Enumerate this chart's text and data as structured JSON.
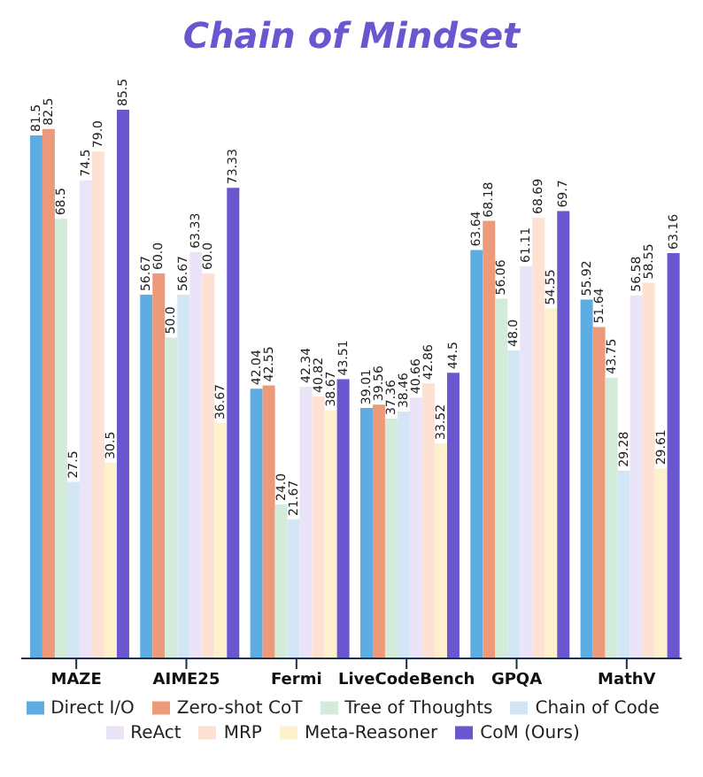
{
  "chart_data": {
    "type": "bar",
    "title": "Chain of Mindset",
    "categories": [
      "MAZE",
      "AIME25",
      "Fermi",
      "LiveCodeBench",
      "GPQA",
      "MathV"
    ],
    "series": [
      {
        "name": "Direct I/O",
        "color": "#5dade2",
        "values": [
          81.5,
          56.67,
          42.04,
          39.01,
          63.64,
          55.92
        ],
        "value_labels": [
          "81.5",
          "56.67",
          "42.04",
          "39.01",
          "63.64",
          "55.92"
        ]
      },
      {
        "name": "Zero-shot CoT",
        "color": "#ec9a7a",
        "values": [
          82.5,
          60.0,
          42.55,
          39.56,
          68.18,
          51.64
        ],
        "value_labels": [
          "82.5",
          "60.0",
          "42.55",
          "39.56",
          "68.18",
          "51.64"
        ]
      },
      {
        "name": "Tree of Thoughts",
        "color": "#d3ecd9",
        "values": [
          68.5,
          50.0,
          24.0,
          37.36,
          56.06,
          43.75
        ],
        "value_labels": [
          "68.5",
          "50.0",
          "24.0",
          "37.36",
          "56.06",
          "43.75"
        ]
      },
      {
        "name": "Chain of Code",
        "color": "#d3e6f6",
        "values": [
          27.5,
          56.67,
          21.67,
          38.46,
          48.0,
          29.28
        ],
        "value_labels": [
          "27.5",
          "56.67",
          "21.67",
          "38.46",
          "48.0",
          "29.28"
        ]
      },
      {
        "name": "ReAct",
        "color": "#ebe4f8",
        "values": [
          74.5,
          63.33,
          42.34,
          40.66,
          61.11,
          56.58
        ],
        "value_labels": [
          "74.5",
          "63.33",
          "42.34",
          "40.66",
          "61.11",
          "56.58"
        ]
      },
      {
        "name": "MRP",
        "color": "#fde2d3",
        "values": [
          79.0,
          60.0,
          40.82,
          42.86,
          68.69,
          58.55
        ],
        "value_labels": [
          "79.0",
          "60.0",
          "40.82",
          "42.86",
          "68.69",
          "58.55"
        ]
      },
      {
        "name": "Meta-Reasoner",
        "color": "#fdf1cc",
        "values": [
          30.5,
          36.67,
          38.67,
          33.52,
          54.55,
          29.61
        ],
        "value_labels": [
          "30.5",
          "36.67",
          "38.67",
          "33.52",
          "54.55",
          "29.61"
        ]
      },
      {
        "name": "CoM (Ours)",
        "color": "#6a56cf",
        "values": [
          85.5,
          73.33,
          43.51,
          44.5,
          69.7,
          63.16
        ],
        "value_labels": [
          "85.5",
          "73.33",
          "43.51",
          "44.5",
          "69.7",
          "63.16"
        ]
      }
    ],
    "tick_labels": "x",
    "grid": false,
    "legend": "bottom"
  }
}
